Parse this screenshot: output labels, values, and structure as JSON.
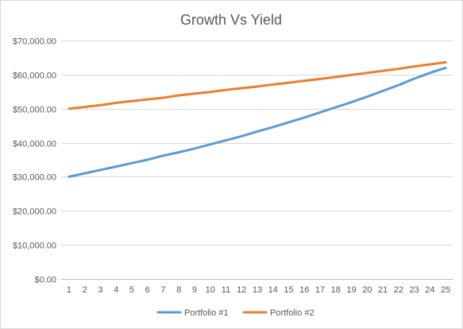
{
  "chart_data": {
    "type": "line",
    "title": "Growth Vs Yield",
    "xlabel": "",
    "ylabel": "",
    "x": [
      1,
      2,
      3,
      4,
      5,
      6,
      7,
      8,
      9,
      10,
      11,
      12,
      13,
      14,
      15,
      16,
      17,
      18,
      19,
      20,
      21,
      22,
      23,
      24,
      25
    ],
    "ylim": [
      0,
      70000
    ],
    "ytick_values": [
      0,
      10000,
      20000,
      30000,
      40000,
      50000,
      60000,
      70000
    ],
    "ytick_labels": [
      "$0.00",
      "$10,000.00",
      "$20,000.00",
      "$30,000.00",
      "$40,000.00",
      "$50,000.00",
      "$60,000.00",
      "$70,000.00"
    ],
    "grid": true,
    "legend_position": "bottom",
    "series": [
      {
        "name": "Portfolio #1",
        "color": "#5b9bd5",
        "values": [
          30000,
          31000,
          32000,
          33000,
          34000,
          35000,
          36200,
          37200,
          38300,
          39500,
          40700,
          41900,
          43300,
          44600,
          46000,
          47400,
          48900,
          50400,
          51900,
          53500,
          55200,
          56900,
          58800,
          60500,
          62000
        ]
      },
      {
        "name": "Portfolio #2",
        "color": "#ed7d31",
        "values": [
          50000,
          50500,
          51000,
          51700,
          52200,
          52700,
          53200,
          53900,
          54400,
          54900,
          55500,
          56000,
          56500,
          57100,
          57600,
          58200,
          58700,
          59300,
          59900,
          60500,
          61100,
          61700,
          62400,
          63000,
          63600
        ]
      }
    ]
  }
}
